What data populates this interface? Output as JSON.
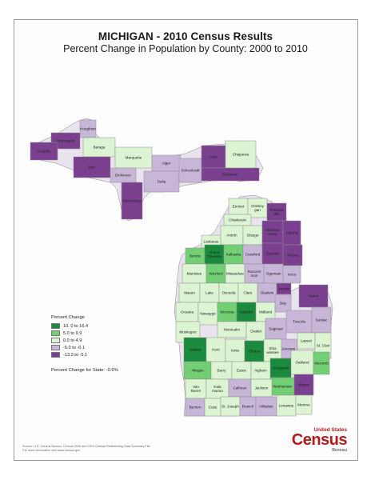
{
  "title": "MICHIGAN - 2010 Census Results",
  "subtitle": "Percent Change in Population by County:  2000 to 2010",
  "legend": {
    "title": "Percent Change",
    "items": [
      {
        "label": "10. 0 to 16.4",
        "color": "#1a8a3c"
      },
      {
        "label": "5.0 to 9.9",
        "color": "#72cf74"
      },
      {
        "label": "0.0 to 4.9",
        "color": "#dcf4d2"
      },
      {
        "label": "-5.0 to -0.1",
        "color": "#c8b6d8"
      },
      {
        "label": "-13.3 to -5.1",
        "color": "#7b3f90"
      }
    ]
  },
  "state_change": "Percent Change for State:  -0.6%",
  "source": {
    "line1": "Source:  U.S. Census Bureau, Census 2000 and 2010 Census Redistricting Data Summary File",
    "line2": "For more information visit www.census.gov"
  },
  "logo": {
    "us": "United States",
    "census": "Census",
    "bureau": "Bureau"
  },
  "counties": {
    "Houghton": "-5.0 to -0.1",
    "Ontonagon": "-13.3 to -5.1",
    "Gogebic": "-13.3 to -5.1",
    "Baraga": "0.0 to 4.9",
    "Marquette": "0.0 to 4.9",
    "Iron": "-13.3 to -5.1",
    "Dickinson": "-5.0 to -0.1",
    "Menominee": "-13.3 to -5.1",
    "Alger": "-5.0 to -0.1",
    "Delta": "-5.0 to -0.1",
    "Schoolcraft": "-5.0 to -0.1",
    "Luce": "-13.3 to -5.1",
    "Chippewa": "0.0 to 4.9",
    "Mackinac": "-13.3 to -5.1",
    "Emmet": "0.0 to 4.9",
    "Cheboygan": "0.0 to 4.9",
    "Presque Isle": "-13.3 to -5.1",
    "Charlevoix": "0.0 to 4.9",
    "Antrim": "0.0 to 4.9",
    "Otsego": "0.0 to 4.9",
    "Montmorency": "-13.3 to -5.1",
    "Alpena": "-13.3 to -5.1",
    "Leelanau": "0.0 to 4.9",
    "Benzie": "5.0 to 9.9",
    "Grand Traverse": "10. 0 to 16.4",
    "Kalkaska": "5.0 to 9.9",
    "Crawford": "-5.0 to -0.1",
    "Oscoda": "-13.3 to -5.1",
    "Alcona": "-13.3 to -5.1",
    "Manistee": "0.0 to 4.9",
    "Wexford": "5.0 to 9.9",
    "Missaukee": "0.0 to 4.9",
    "Roscommon": "-5.0 to -0.1",
    "Ogemaw": "-5.0 to -0.1",
    "Iosco": "-5.0 to -0.1",
    "Mason": "0.0 to 4.9",
    "Lake": "0.0 to 4.9",
    "Osceola": "0.0 to 4.9",
    "Clare": "0.0 to 4.9",
    "Gladwin": "-5.0 to -0.1",
    "Arenac": "-13.3 to -5.1",
    "Huron": "-13.3 to -5.1",
    "Oceana": "0.0 to 4.9",
    "Newaygo": "0.0 to 4.9",
    "Mecosta": "5.0 to 9.9",
    "Isabella": "10. 0 to 16.4",
    "Midland": "0.0 to 4.9",
    "Bay": "-5.0 to -0.1",
    "Tuscola": "-5.0 to -0.1",
    "Sanilac": "-5.0 to -0.1",
    "Muskegon": "0.0 to 4.9",
    "Montcalm": "0.0 to 4.9",
    "Gratiot": "0.0 to 4.9",
    "Saginaw": "-5.0 to -0.1",
    "Genesee": "-5.0 to -0.1",
    "Lapeer": "0.0 to 4.9",
    "St. Clair": "0.0 to 4.9",
    "Ottawa": "10. 0 to 16.4",
    "Kent": "0.0 to 4.9",
    "Ionia": "0.0 to 4.9",
    "Clinton": "10. 0 to 16.4",
    "Shiawassee": "0.0 to 4.9",
    "Livingston": "10. 0 to 16.4",
    "Oakland": "0.0 to 4.9",
    "Macomb": "5.0 to 9.9",
    "Allegan": "5.0 to 9.9",
    "Barry": "0.0 to 4.9",
    "Eaton": "0.0 to 4.9",
    "Ingham": "0.0 to 4.9",
    "Washtenaw": "5.0 to 9.9",
    "Wayne": "-13.3 to -5.1",
    "Van Buren": "0.0 to 4.9",
    "Kalamazoo": "0.0 to 4.9",
    "Calhoun": "-5.0 to -0.1",
    "Jackson": "0.0 to 4.9",
    "Berrien": "-5.0 to -0.1",
    "Cass": "0.0 to 4.9",
    "St. Joseph": "0.0 to 4.9",
    "Branch": "-5.0 to -0.1",
    "Hillsdale": "-5.0 to -0.1",
    "Lenawee": "0.0 to 4.9",
    "Monroe": "0.0 to 4.9"
  }
}
